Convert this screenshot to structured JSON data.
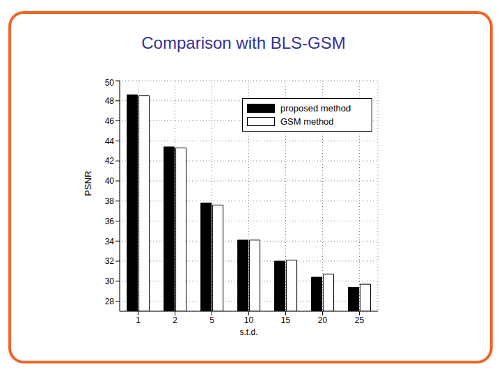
{
  "chart_data": {
    "type": "bar",
    "title": "Comparison with BLS-GSM",
    "x_label": "s.t.d.",
    "y_label": "PSNR",
    "categories": [
      "1",
      "2",
      "5",
      "10",
      "15",
      "20",
      "25"
    ],
    "series": [
      {
        "name": "proposed method",
        "color": "#000000",
        "values": [
          48.6,
          43.4,
          37.8,
          34.1,
          32.0,
          30.4,
          29.4
        ]
      },
      {
        "name": "GSM method",
        "color": "#ffffff",
        "values": [
          48.5,
          43.3,
          37.6,
          34.1,
          32.1,
          30.7,
          29.7
        ]
      }
    ],
    "ylim": [
      27,
      50
    ],
    "yticks": [
      28,
      30,
      32,
      34,
      36,
      38,
      40,
      42,
      44,
      46,
      48,
      50
    ],
    "grid": true,
    "legend": "upper right"
  }
}
